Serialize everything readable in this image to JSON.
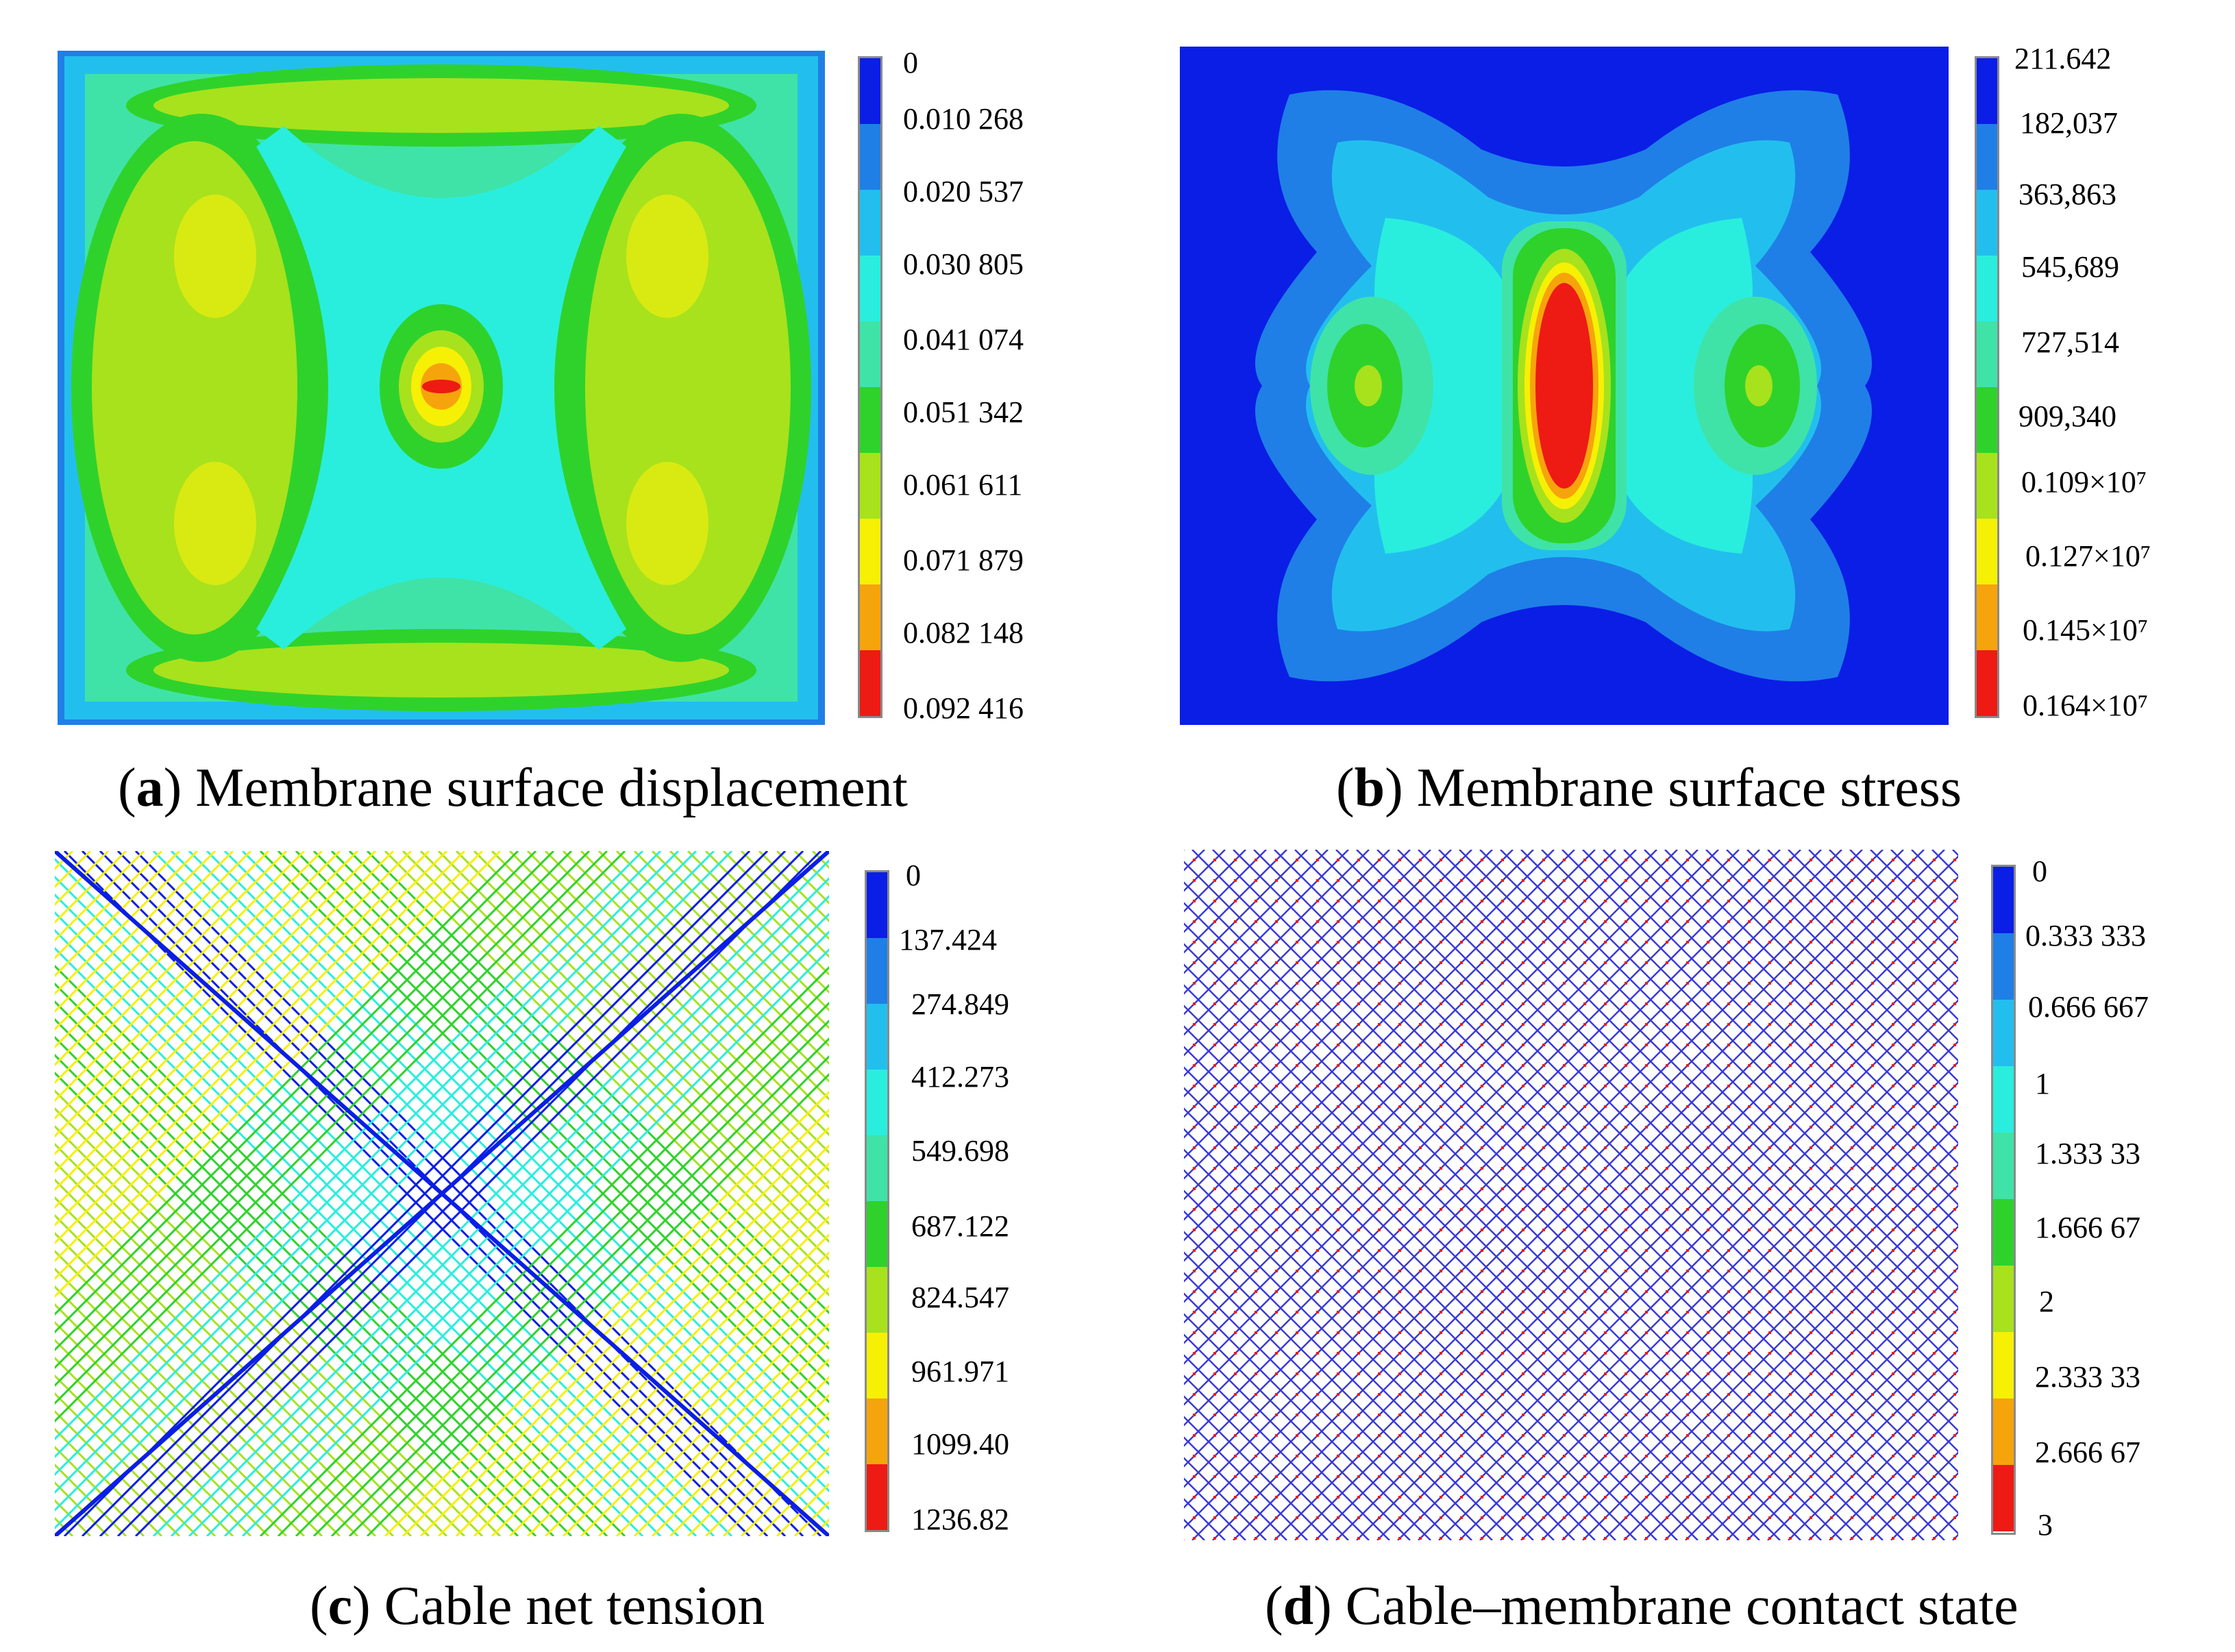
{
  "colormap": [
    "#0a1ee6",
    "#1f7fe6",
    "#22bfee",
    "#29eedd",
    "#3fe3a7",
    "#2fd22b",
    "#a7e21d",
    "#f6f005",
    "#f6a40c",
    "#ee1a14"
  ],
  "panels": [
    {
      "id": "a",
      "letter": "a",
      "caption": "Membrane surface displacement",
      "ticks": [
        "0",
        "0.010 268",
        "0.020 537",
        "0.030 805",
        "0.041 074",
        "0.051 342",
        "0.061 611",
        "0.071 879",
        "0.082 148",
        "0.092 416"
      ]
    },
    {
      "id": "b",
      "letter": "b",
      "caption": "Membrane surface stress",
      "ticks": [
        "211.642",
        "182,037",
        "363,863",
        "545,689",
        "727,514",
        "909,340",
        "0.109×10⁷",
        "0.127×10⁷",
        "0.145×10⁷",
        "0.164×10⁷"
      ]
    },
    {
      "id": "c",
      "letter": "c",
      "caption": "Cable net tension",
      "ticks": [
        "0",
        "137.424",
        "274.849",
        "412.273",
        "549.698",
        "687.122",
        "824.547",
        "961.971",
        "1099.40",
        "1236.82"
      ]
    },
    {
      "id": "d",
      "letter": "d",
      "caption": "Cable–membrane contact state",
      "ticks": [
        "0",
        "0.333 333",
        "0.666 667",
        "1",
        "1.333 33",
        "1.666 67",
        "2",
        "2.333 33",
        "2.666 67",
        "3"
      ]
    }
  ]
}
